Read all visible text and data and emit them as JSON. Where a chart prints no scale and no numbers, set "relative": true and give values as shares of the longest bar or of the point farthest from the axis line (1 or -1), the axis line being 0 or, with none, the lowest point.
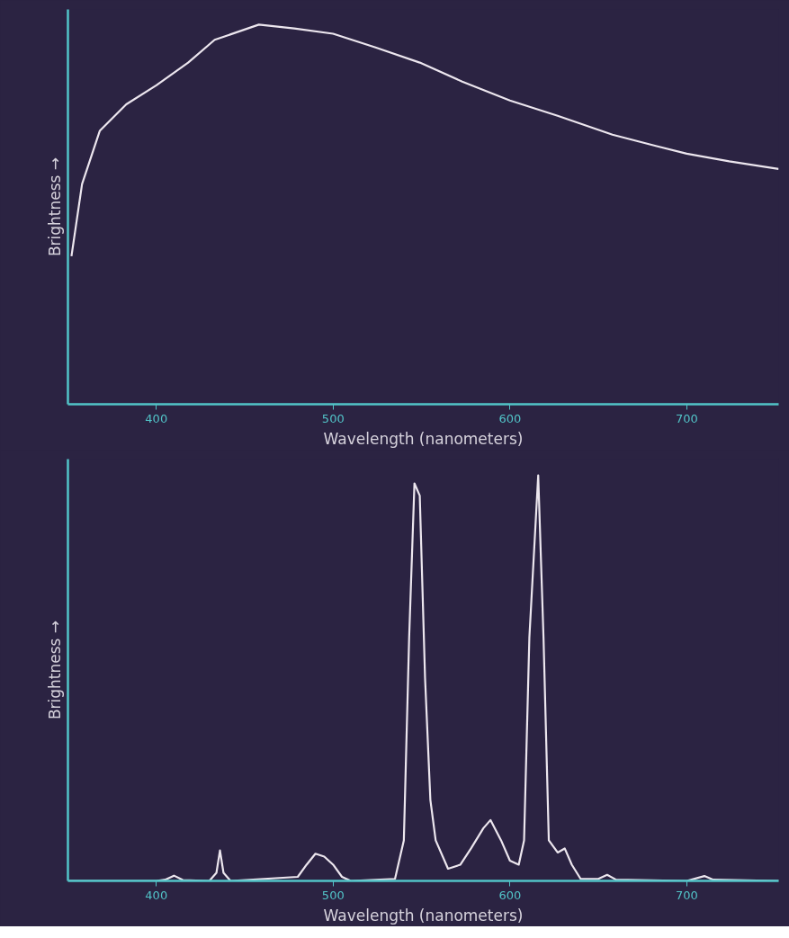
{
  "chart_data": [
    {
      "type": "line",
      "relative": true,
      "xlabel": "Wavelength (nanometers)",
      "ylabel": "Brightness →",
      "xlim": [
        350,
        752
      ],
      "xticks": [
        400,
        500,
        600,
        700
      ],
      "color": "#ece6ee",
      "x": [
        352,
        358,
        368,
        383,
        400,
        418,
        433,
        458,
        478,
        500,
        524,
        549,
        573,
        600,
        627,
        658,
        683,
        700,
        724,
        752
      ],
      "values": [
        0.39,
        0.58,
        0.72,
        0.79,
        0.84,
        0.9,
        0.96,
        1.0,
        0.99,
        0.976,
        0.94,
        0.9,
        0.85,
        0.8,
        0.76,
        0.71,
        0.68,
        0.66,
        0.64,
        0.62
      ]
    },
    {
      "type": "line",
      "relative": true,
      "xlabel": "Wavelength (nanometers)",
      "ylabel": "Brightness →",
      "xlim": [
        350,
        752
      ],
      "xticks": [
        400,
        500,
        600,
        700
      ],
      "color": "#ece6ee",
      "x": [
        350,
        400,
        405,
        410,
        415,
        430,
        434,
        436,
        438,
        442,
        480,
        485,
        490,
        495,
        500,
        505,
        510,
        535,
        540,
        543,
        546,
        549,
        552,
        555,
        558,
        565,
        572,
        578,
        585,
        589,
        595,
        600,
        605,
        608,
        611,
        616,
        619,
        622,
        627,
        631,
        635,
        640,
        650,
        655,
        660,
        700,
        710,
        715,
        752
      ],
      "values": [
        0,
        0,
        0.003,
        0.013,
        0.002,
        0,
        0.02,
        0.075,
        0.02,
        0,
        0.01,
        0.04,
        0.067,
        0.06,
        0.04,
        0.01,
        0,
        0.005,
        0.1,
        0.6,
        0.98,
        0.95,
        0.5,
        0.2,
        0.1,
        0.03,
        0.04,
        0.08,
        0.13,
        0.15,
        0.1,
        0.05,
        0.04,
        0.1,
        0.6,
        1.0,
        0.6,
        0.1,
        0.07,
        0.08,
        0.04,
        0.005,
        0.005,
        0.015,
        0.003,
        0,
        0.012,
        0.003,
        0
      ]
    }
  ]
}
